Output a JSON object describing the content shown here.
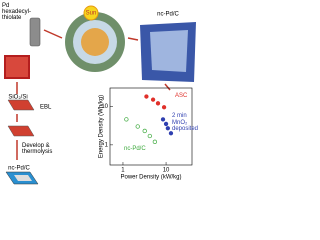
{
  "labels": {
    "precursor": "Pd hexadecyl-thiolate",
    "sun": "Sun",
    "product": "nc-Pd/C",
    "substrate": "SiO₂/Si",
    "ebl": "EBL",
    "process": "Develop & thermolysis",
    "device": "nc-Pd/C"
  },
  "chart_data": {
    "type": "scatter",
    "xlabel": "Power Density (kW/kg)",
    "ylabel": "Energy Density (Wh/kg)",
    "log_x": true,
    "log_y": true,
    "xlim": [
      0.5,
      40
    ],
    "ylim": [
      0.3,
      30
    ],
    "xticks": [
      1,
      10
    ],
    "yticks": [
      1,
      10
    ],
    "series": [
      {
        "name": "ASC",
        "color": "#e0302a",
        "filled": true,
        "x": [
          3.5,
          5,
          6.5,
          9
        ],
        "values": [
          18,
          15,
          12,
          9.5
        ]
      },
      {
        "name": "2 min MnO₂ deposited",
        "color": "#2f3fb0",
        "filled": true,
        "x": [
          8.5,
          10,
          11,
          13
        ],
        "values": [
          4.6,
          3.5,
          2.7,
          2
        ]
      },
      {
        "name": "nc-Pd/C",
        "color": "#3aa83a",
        "filled": false,
        "x": [
          1.2,
          2.2,
          3.2,
          4.2,
          5.5
        ],
        "values": [
          4.6,
          3,
          2.3,
          1.7,
          1.2
        ]
      }
    ]
  }
}
